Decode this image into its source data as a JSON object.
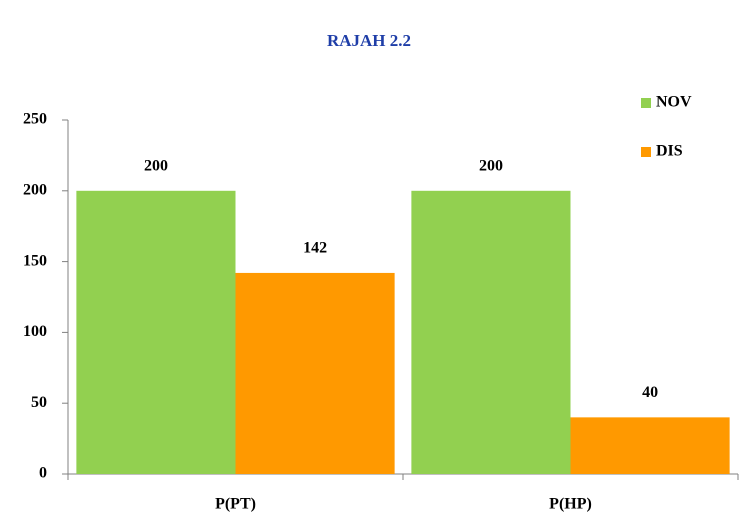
{
  "chart_data": {
    "type": "bar",
    "title": "RAJAH 2.2",
    "categories": [
      "P(PT)",
      "P(HP)"
    ],
    "series": [
      {
        "name": "NOV",
        "color": "#92d050",
        "values": [
          200,
          200
        ]
      },
      {
        "name": "DIS",
        "color": "#ff9900",
        "values": [
          142,
          40
        ]
      }
    ],
    "ylim": [
      0,
      250
    ],
    "yticks": [
      0,
      50,
      100,
      150,
      200,
      250
    ],
    "legend": "top-right",
    "data_labels": true
  }
}
